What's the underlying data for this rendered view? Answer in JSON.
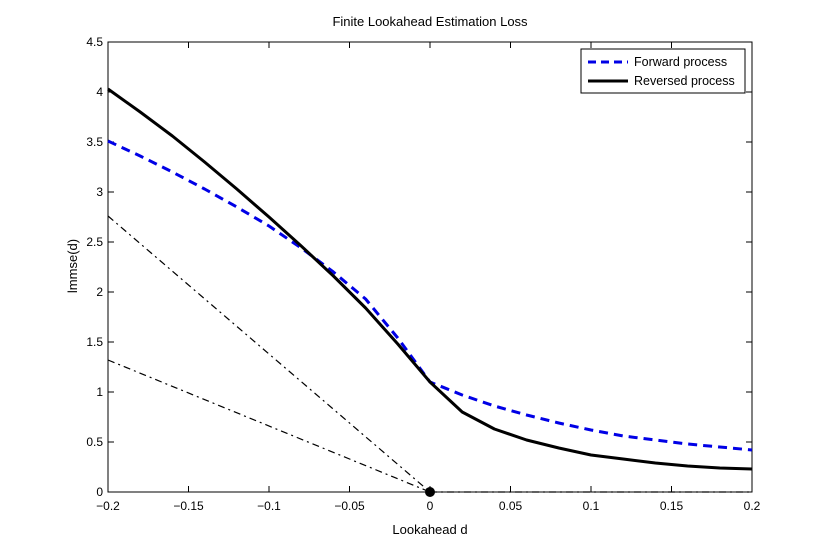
{
  "chart_data": {
    "type": "line",
    "title": "Finite Lookahead Estimation Loss",
    "xlabel": "Lookahead d",
    "ylabel": "lmmse(d)",
    "xlim": [
      -0.2,
      0.2
    ],
    "ylim": [
      0,
      4.5
    ],
    "x_ticks": [
      -0.2,
      -0.15,
      -0.1,
      -0.05,
      0,
      0.05,
      0.1,
      0.15,
      0.2
    ],
    "x_tick_labels": [
      "−0.2",
      "−0.15",
      "−0.1",
      "−0.05",
      "0",
      "0.05",
      "0.1",
      "0.15",
      "0.2"
    ],
    "y_ticks": [
      0,
      0.5,
      1,
      1.5,
      2,
      2.5,
      3,
      3.5,
      4,
      4.5
    ],
    "y_tick_labels": [
      "0",
      "0.5",
      "1",
      "1.5",
      "2",
      "2.5",
      "3",
      "3.5",
      "4",
      "4.5"
    ],
    "grid": false,
    "legend_position": "top-right",
    "series": [
      {
        "name": "Forward process",
        "style": "dashed",
        "color": "#0000e6",
        "x": [
          -0.2,
          -0.18,
          -0.16,
          -0.14,
          -0.12,
          -0.1,
          -0.08,
          -0.06,
          -0.04,
          -0.02,
          0,
          0.02,
          0.04,
          0.06,
          0.08,
          0.1,
          0.12,
          0.14,
          0.16,
          0.18,
          0.2
        ],
        "y": [
          3.51,
          3.36,
          3.2,
          3.03,
          2.85,
          2.66,
          2.44,
          2.2,
          1.93,
          1.54,
          1.1,
          0.97,
          0.86,
          0.77,
          0.69,
          0.62,
          0.56,
          0.52,
          0.48,
          0.45,
          0.42
        ]
      },
      {
        "name": "Reversed process",
        "style": "solid",
        "color": "#000000",
        "x": [
          -0.2,
          -0.18,
          -0.16,
          -0.14,
          -0.12,
          -0.1,
          -0.08,
          -0.06,
          -0.04,
          -0.02,
          0,
          0.02,
          0.04,
          0.06,
          0.08,
          0.1,
          0.12,
          0.14,
          0.16,
          0.18,
          0.2
        ],
        "y": [
          4.03,
          3.8,
          3.56,
          3.3,
          3.03,
          2.75,
          2.46,
          2.16,
          1.84,
          1.48,
          1.1,
          0.8,
          0.63,
          0.52,
          0.44,
          0.37,
          0.33,
          0.29,
          0.26,
          0.24,
          0.23
        ]
      }
    ],
    "reference_lines": [
      {
        "name": "asymptote-steep",
        "style": "dashdot",
        "color": "#000000",
        "x": [
          -0.2,
          0
        ],
        "y": [
          2.76,
          0
        ]
      },
      {
        "name": "asymptote-shallow",
        "style": "dashdot",
        "color": "#000000",
        "x": [
          -0.2,
          0
        ],
        "y": [
          1.32,
          0
        ]
      },
      {
        "name": "zero-baseline",
        "style": "dashdot",
        "color": "#000000",
        "x": [
          0,
          0.2
        ],
        "y": [
          0,
          0
        ]
      }
    ],
    "marker": {
      "x": 0,
      "y": 0
    }
  }
}
